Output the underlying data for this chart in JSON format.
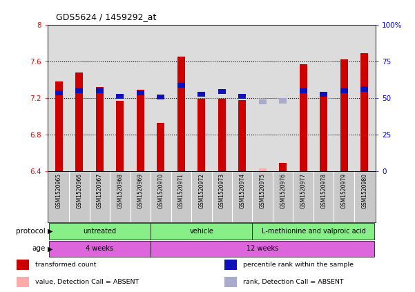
{
  "title": "GDS5624 / 1459292_at",
  "samples": [
    "GSM1520965",
    "GSM1520966",
    "GSM1520967",
    "GSM1520968",
    "GSM1520969",
    "GSM1520970",
    "GSM1520971",
    "GSM1520972",
    "GSM1520973",
    "GSM1520974",
    "GSM1520975",
    "GSM1520976",
    "GSM1520977",
    "GSM1520978",
    "GSM1520979",
    "GSM1520980"
  ],
  "red_values": [
    7.38,
    7.48,
    7.32,
    7.17,
    7.29,
    6.93,
    7.65,
    7.19,
    7.19,
    7.18,
    null,
    6.49,
    7.57,
    7.27,
    7.62,
    7.69
  ],
  "blue_values": [
    7.26,
    7.28,
    7.28,
    7.22,
    7.26,
    7.21,
    7.34,
    7.24,
    7.27,
    7.22,
    null,
    null,
    7.28,
    7.24,
    7.28,
    7.3
  ],
  "absent_red": [
    null,
    null,
    null,
    null,
    null,
    null,
    null,
    null,
    null,
    null,
    6.43,
    null,
    null,
    null,
    null,
    null
  ],
  "absent_blue": [
    null,
    null,
    null,
    null,
    null,
    null,
    null,
    null,
    null,
    null,
    7.16,
    7.17,
    null,
    null,
    null,
    null
  ],
  "ymin": 6.4,
  "ymax": 8.0,
  "yticks_left": [
    6.4,
    6.8,
    7.2,
    7.6,
    8.0
  ],
  "ytick_labels_left": [
    "6.4",
    "6.8",
    "7.2",
    "7.6",
    "8"
  ],
  "yticks_right": [
    0,
    25,
    50,
    75,
    100
  ],
  "ytick_labels_right": [
    "0",
    "25",
    "50",
    "75",
    "100%"
  ],
  "dotted_lines": [
    6.8,
    7.2,
    7.6
  ],
  "bar_color_red": "#CC0000",
  "bar_color_blue": "#1010BB",
  "bar_color_absent_red": "#FFAAAA",
  "bar_color_absent_blue": "#AAAACC",
  "bg_plot": "#DCDCDC",
  "bg_label": "#C8C8C8",
  "protocol_color": "#88EE88",
  "age_color": "#DD66DD",
  "protocol_groups": [
    {
      "label": "untreated",
      "start": 0,
      "end": 4
    },
    {
      "label": "vehicle",
      "start": 5,
      "end": 9
    },
    {
      "label": "L-methionine and valproic acid",
      "start": 10,
      "end": 15
    }
  ],
  "age_groups": [
    {
      "label": "4 weeks",
      "start": 0,
      "end": 4
    },
    {
      "label": "12 weeks",
      "start": 5,
      "end": 15
    }
  ],
  "legend_items": [
    {
      "color": "#CC0000",
      "label": "transformed count"
    },
    {
      "color": "#1010BB",
      "label": "percentile rank within the sample"
    },
    {
      "color": "#FFAAAA",
      "label": "value, Detection Call = ABSENT"
    },
    {
      "color": "#AAAACC",
      "label": "rank, Detection Call = ABSENT"
    }
  ]
}
